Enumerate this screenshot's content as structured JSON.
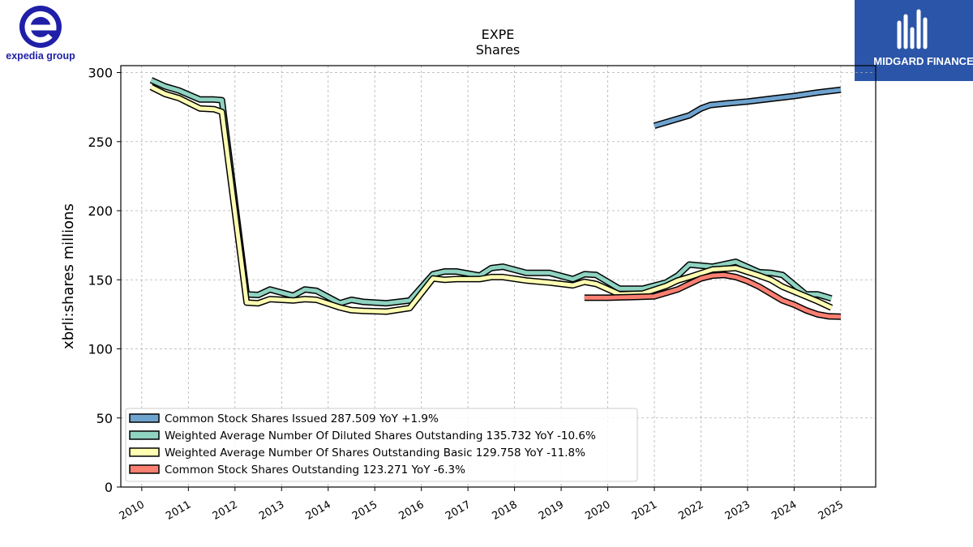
{
  "branding": {
    "left_logo_text": "expedia group",
    "right_logo_text": "MIDGARD FINANCE"
  },
  "chart_data": {
    "type": "line",
    "title": "EXPE",
    "subtitle": "Shares",
    "ylabel": "xbrli:shares millions",
    "xlabel": "",
    "ylim": [
      0,
      305
    ],
    "xlim": [
      2009.55,
      2025.75
    ],
    "yticks": [
      0,
      50,
      100,
      150,
      200,
      250,
      300
    ],
    "xticks": [
      2010,
      2011,
      2012,
      2013,
      2014,
      2015,
      2016,
      2017,
      2018,
      2019,
      2020,
      2021,
      2022,
      2023,
      2024,
      2025
    ],
    "grid": true,
    "legend_position": "lower-left",
    "series": [
      {
        "name": "Common Stock Shares Issued",
        "legend_label": "Common Stock Shares Issued  287.509 YoY +1.9%",
        "color": "#6fa3cf",
        "x": [
          2021.0,
          2021.75,
          2022.0,
          2022.2,
          2022.5,
          2023.0,
          2023.5,
          2024.0,
          2024.5,
          2025.0
        ],
        "y": [
          261.5,
          269.0,
          274.0,
          276.5,
          277.5,
          279.0,
          281.0,
          283.0,
          285.5,
          287.5
        ]
      },
      {
        "name": "Weighted Average Number Of Diluted Shares Outstanding",
        "legend_label": "Weighted Average Number Of Diluted Shares Outstanding  135.732 YoY -10.6%",
        "color": "#8fd3c1",
        "x": [
          2010.2,
          2010.5,
          2010.8,
          2011.25,
          2011.55,
          2011.72,
          2012.25,
          2012.5,
          2012.75,
          2013.25,
          2013.5,
          2013.75,
          2014.25,
          2014.5,
          2014.75,
          2015.25,
          2015.75,
          2016.25,
          2016.5,
          2016.75,
          2017.25,
          2017.5,
          2017.75,
          2018.25,
          2018.75,
          2019.25,
          2019.5,
          2019.75,
          2020.25,
          2020.75,
          2021.25,
          2021.5,
          2021.75,
          2022.25,
          2022.75,
          2023.25,
          2023.5,
          2023.75,
          2024.25,
          2024.5,
          2024.8
        ],
        "y": [
          294.5,
          290.0,
          287.0,
          280.5,
          280.5,
          280.0,
          139.5,
          139.0,
          143.0,
          138.5,
          143.0,
          142.0,
          133.0,
          135.5,
          134.0,
          133.0,
          135.0,
          154.0,
          156.0,
          156.0,
          153.0,
          158.5,
          159.5,
          155.0,
          155.0,
          150.5,
          154.0,
          153.5,
          143.5,
          143.5,
          148.0,
          153.0,
          161.0,
          159.5,
          163.0,
          155.5,
          155.0,
          153.5,
          139.5,
          139.5,
          136.5
        ]
      },
      {
        "name": "Weighted Average Number Of Shares Outstanding Basic",
        "legend_label": "Weighted Average Number Of Shares Outstanding Basic  129.758 YoY -11.8%",
        "color": "#ffffb3",
        "x": [
          2010.2,
          2010.5,
          2010.8,
          2011.25,
          2011.55,
          2011.72,
          2012.25,
          2012.5,
          2012.75,
          2013.25,
          2013.5,
          2013.75,
          2014.25,
          2014.5,
          2014.75,
          2015.25,
          2015.75,
          2016.25,
          2016.5,
          2016.75,
          2017.25,
          2017.5,
          2017.75,
          2018.25,
          2018.75,
          2019.25,
          2019.5,
          2019.75,
          2020.25,
          2020.75,
          2021.25,
          2021.5,
          2021.75,
          2022.25,
          2022.75,
          2023.25,
          2023.5,
          2023.75,
          2024.25,
          2024.5,
          2024.8
        ],
        "y": [
          289.5,
          284.5,
          281.5,
          274.0,
          273.5,
          271.5,
          133.5,
          133.0,
          136.0,
          135.0,
          136.0,
          135.5,
          130.0,
          128.0,
          127.5,
          127.0,
          129.5,
          151.0,
          150.0,
          150.5,
          150.5,
          152.0,
          152.0,
          149.5,
          148.0,
          146.0,
          148.5,
          147.0,
          139.5,
          140.0,
          145.5,
          149.5,
          152.0,
          157.5,
          158.5,
          153.0,
          150.0,
          145.0,
          138.0,
          134.5,
          129.8
        ]
      },
      {
        "name": "Common Stock Shares Outstanding",
        "legend_label": "Common Stock Shares Outstanding  123.271 YoY -6.3%",
        "color": "#fb8072",
        "x": [
          2019.5,
          2020.0,
          2020.5,
          2021.0,
          2021.5,
          2021.75,
          2022.0,
          2022.25,
          2022.5,
          2022.75,
          2023.0,
          2023.25,
          2023.5,
          2023.75,
          2024.0,
          2024.25,
          2024.5,
          2024.75,
          2025.0
        ],
        "y": [
          137.0,
          137.0,
          137.5,
          138.0,
          143.0,
          147.0,
          151.0,
          153.0,
          153.5,
          152.0,
          149.0,
          145.0,
          140.0,
          135.0,
          132.0,
          128.0,
          125.0,
          123.5,
          123.3
        ]
      }
    ]
  }
}
